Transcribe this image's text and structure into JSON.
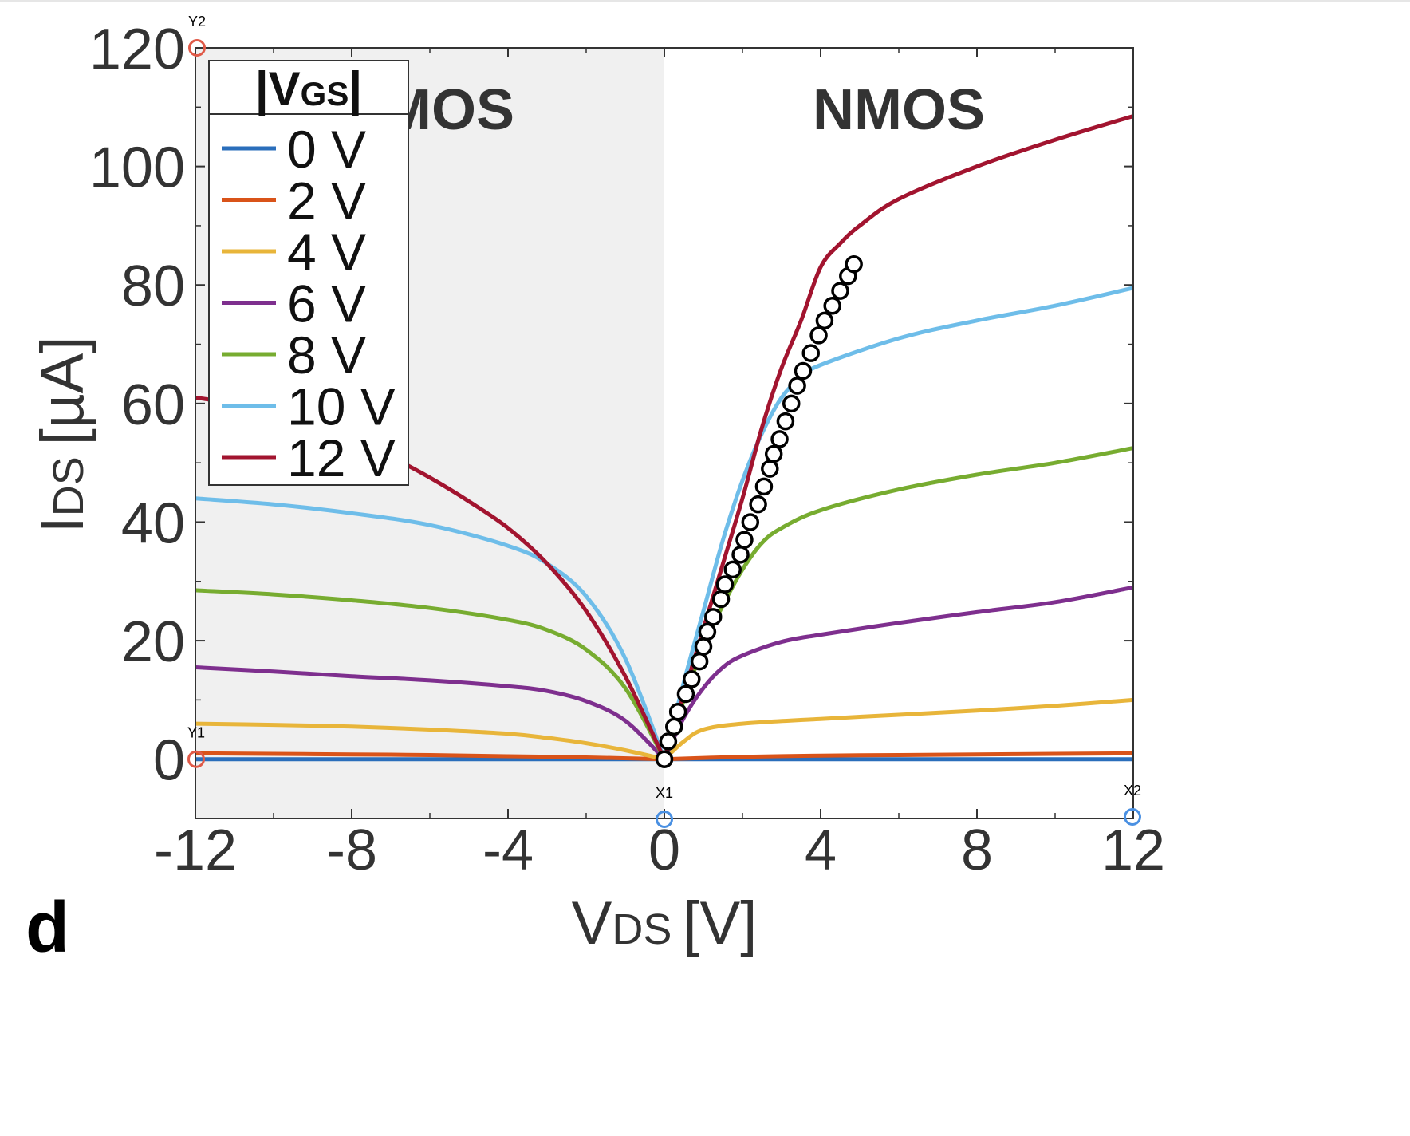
{
  "chart_data": {
    "type": "line",
    "panel_label": "d",
    "xlabel_main": "V",
    "xlabel_sub": "DS",
    "xlabel_unit": "[V]",
    "ylabel_main": "I",
    "ylabel_sub": "DS",
    "ylabel_unit": "[µA]",
    "xlim": [
      -12,
      12
    ],
    "ylim": [
      -10,
      120
    ],
    "xticks": [
      -12,
      -8,
      -4,
      0,
      4,
      8,
      12
    ],
    "yticks": [
      0,
      20,
      40,
      60,
      80,
      100,
      120
    ],
    "grid": false,
    "regions": [
      {
        "label": "PMOS",
        "x_range": [
          -12,
          0
        ],
        "color": "#f0f0f0"
      },
      {
        "label": "NMOS",
        "x_range": [
          0,
          12
        ],
        "color": "#ffffff"
      }
    ],
    "legend": {
      "title_main": "|V",
      "title_sub": "GS",
      "title_end": "|",
      "placement": "top-left"
    },
    "series": [
      {
        "name": "0 V",
        "color": "#2a6ebb",
        "points": [
          [
            -12,
            0
          ],
          [
            -10,
            0
          ],
          [
            -8,
            0
          ],
          [
            -6,
            0
          ],
          [
            -4,
            0
          ],
          [
            -2,
            0
          ],
          [
            0,
            0
          ],
          [
            2,
            0
          ],
          [
            4,
            0
          ],
          [
            6,
            0
          ],
          [
            8,
            0
          ],
          [
            10,
            0
          ],
          [
            12,
            0
          ]
        ]
      },
      {
        "name": "2 V",
        "color": "#d95319",
        "points": [
          [
            -12,
            1
          ],
          [
            -10,
            0.9
          ],
          [
            -8,
            0.8
          ],
          [
            -6,
            0.7
          ],
          [
            -4,
            0.5
          ],
          [
            -2,
            0.3
          ],
          [
            0,
            0
          ],
          [
            2,
            0.4
          ],
          [
            4,
            0.6
          ],
          [
            6,
            0.7
          ],
          [
            8,
            0.8
          ],
          [
            10,
            0.9
          ],
          [
            12,
            1
          ]
        ]
      },
      {
        "name": "4 V",
        "color": "#e8b53a",
        "points": [
          [
            -12,
            6
          ],
          [
            -10,
            5.8
          ],
          [
            -8,
            5.5
          ],
          [
            -6,
            5
          ],
          [
            -4,
            4.3
          ],
          [
            -3,
            3.6
          ],
          [
            -2,
            2.7
          ],
          [
            -1,
            1.5
          ],
          [
            0,
            0
          ],
          [
            0.5,
            3
          ],
          [
            1,
            5
          ],
          [
            2,
            6
          ],
          [
            4,
            6.8
          ],
          [
            6,
            7.5
          ],
          [
            8,
            8.2
          ],
          [
            10,
            9
          ],
          [
            12,
            10
          ]
        ]
      },
      {
        "name": "6 V",
        "color": "#7e2f8e",
        "points": [
          [
            -12,
            15.5
          ],
          [
            -10,
            14.8
          ],
          [
            -8,
            14
          ],
          [
            -6,
            13.3
          ],
          [
            -4,
            12.3
          ],
          [
            -3,
            11.5
          ],
          [
            -2,
            9.8
          ],
          [
            -1,
            6.5
          ],
          [
            0,
            0
          ],
          [
            0.5,
            7
          ],
          [
            1,
            12
          ],
          [
            1.5,
            15.5
          ],
          [
            2,
            17.5
          ],
          [
            3,
            19.8
          ],
          [
            4,
            21
          ],
          [
            6,
            23
          ],
          [
            8,
            24.8
          ],
          [
            10,
            26.5
          ],
          [
            12,
            29
          ]
        ]
      },
      {
        "name": "8 V",
        "color": "#77ac30",
        "points": [
          [
            -12,
            28.5
          ],
          [
            -10,
            27.8
          ],
          [
            -8,
            26.8
          ],
          [
            -6,
            25.5
          ],
          [
            -4,
            23.5
          ],
          [
            -3,
            21.8
          ],
          [
            -2,
            18.5
          ],
          [
            -1,
            12
          ],
          [
            0,
            0
          ],
          [
            0.5,
            10
          ],
          [
            1,
            19
          ],
          [
            1.5,
            26
          ],
          [
            2,
            32
          ],
          [
            2.5,
            36.5
          ],
          [
            3,
            39
          ],
          [
            4,
            42
          ],
          [
            6,
            45.5
          ],
          [
            8,
            48
          ],
          [
            10,
            50
          ],
          [
            12,
            52.5
          ]
        ]
      },
      {
        "name": "10 V",
        "color": "#6ebde9",
        "points": [
          [
            -12,
            44
          ],
          [
            -10,
            43
          ],
          [
            -8,
            41.5
          ],
          [
            -6,
            39.5
          ],
          [
            -4,
            36
          ],
          [
            -3,
            33
          ],
          [
            -2,
            27.5
          ],
          [
            -1,
            17
          ],
          [
            0,
            0
          ],
          [
            0.5,
            13
          ],
          [
            1,
            25
          ],
          [
            1.5,
            37
          ],
          [
            2,
            47
          ],
          [
            2.5,
            55
          ],
          [
            3,
            61
          ],
          [
            3.5,
            64.5
          ],
          [
            4,
            66.5
          ],
          [
            6,
            71
          ],
          [
            8,
            74
          ],
          [
            10,
            76.5
          ],
          [
            12,
            79.5
          ]
        ]
      },
      {
        "name": "12 V",
        "color": "#a2142f",
        "points": [
          [
            -12,
            61
          ],
          [
            -11,
            60
          ],
          [
            -10,
            58.5
          ],
          [
            -9,
            56.5
          ],
          [
            -8,
            54
          ],
          [
            -7,
            51
          ],
          [
            -6,
            47.5
          ],
          [
            -5,
            43.5
          ],
          [
            -4,
            39
          ],
          [
            -3,
            33
          ],
          [
            -2,
            25
          ],
          [
            -1,
            14
          ],
          [
            0,
            0
          ],
          [
            0.5,
            11
          ],
          [
            1,
            22
          ],
          [
            1.5,
            33
          ],
          [
            2,
            44
          ],
          [
            2.5,
            56
          ],
          [
            3,
            66
          ],
          [
            3.5,
            74
          ],
          [
            4,
            83
          ],
          [
            4.5,
            87
          ],
          [
            5,
            90
          ],
          [
            6,
            94.5
          ],
          [
            8,
            100
          ],
          [
            10,
            104.5
          ],
          [
            12,
            108.5
          ]
        ]
      }
    ],
    "markers": [
      {
        "name": "digitized points",
        "style": "open-circle",
        "points": [
          [
            0,
            0
          ],
          [
            0.1,
            3
          ],
          [
            0.25,
            5.5
          ],
          [
            0.35,
            8
          ],
          [
            0.55,
            11
          ],
          [
            0.7,
            13.5
          ],
          [
            0.9,
            16.5
          ],
          [
            1,
            19
          ],
          [
            1.1,
            21.5
          ],
          [
            1.25,
            24
          ],
          [
            1.45,
            27
          ],
          [
            1.55,
            29.5
          ],
          [
            1.75,
            32
          ],
          [
            1.95,
            34.5
          ],
          [
            2.05,
            37
          ],
          [
            2.2,
            40
          ],
          [
            2.4,
            43
          ],
          [
            2.55,
            46
          ],
          [
            2.7,
            49
          ],
          [
            2.8,
            51.5
          ],
          [
            2.95,
            54
          ],
          [
            3.1,
            57
          ],
          [
            3.25,
            60
          ],
          [
            3.4,
            63
          ],
          [
            3.55,
            65.5
          ],
          [
            3.75,
            68.5
          ],
          [
            3.95,
            71.5
          ],
          [
            4.1,
            74
          ],
          [
            4.3,
            76.5
          ],
          [
            4.5,
            79
          ],
          [
            4.7,
            81.5
          ],
          [
            4.85,
            83.5
          ]
        ]
      }
    ],
    "calibration_points": [
      {
        "label": "Y2",
        "axis": "y",
        "color": "#e05a48"
      },
      {
        "label": "Y1",
        "axis": "y",
        "color": "#e05a48"
      },
      {
        "label": "X1",
        "axis": "x",
        "color": "#4a90e2"
      },
      {
        "label": "X2",
        "axis": "x",
        "color": "#4a90e2"
      }
    ]
  }
}
